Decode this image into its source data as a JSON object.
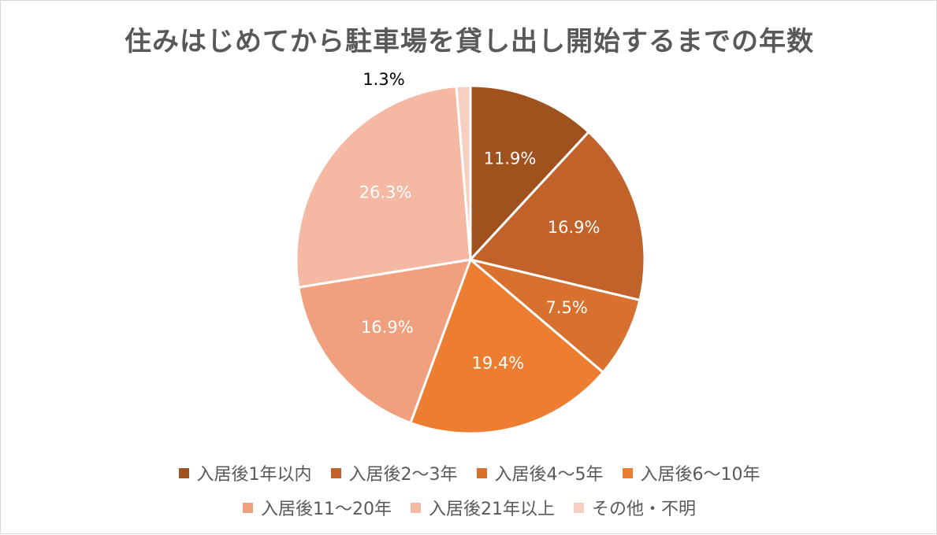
{
  "chart_data": {
    "type": "pie",
    "title": "住みはじめてから駐車場を貸し出し開始するまでの年数",
    "slices": [
      {
        "label": "入居後1年以内",
        "value": 11.9,
        "value_label": "11.9%",
        "color": "#A0521E"
      },
      {
        "label": "入居後2〜3年",
        "value": 16.9,
        "value_label": "16.9%",
        "color": "#C1622A"
      },
      {
        "label": "入居後4〜5年",
        "value": 7.5,
        "value_label": "7.5%",
        "color": "#D8702E"
      },
      {
        "label": "入居後6〜10年",
        "value": 19.4,
        "value_label": "19.4%",
        "color": "#ED7D31"
      },
      {
        "label": "入居後11〜20年",
        "value": 16.9,
        "value_label": "16.9%",
        "color": "#F0A07E"
      },
      {
        "label": "入居後21年以上",
        "value": 26.3,
        "value_label": "26.3%",
        "color": "#F4B8A3"
      },
      {
        "label": "その他・不明",
        "value": 1.3,
        "value_label": "1.3%",
        "color": "#F7CFC2"
      }
    ],
    "legend_position": "bottom"
  }
}
